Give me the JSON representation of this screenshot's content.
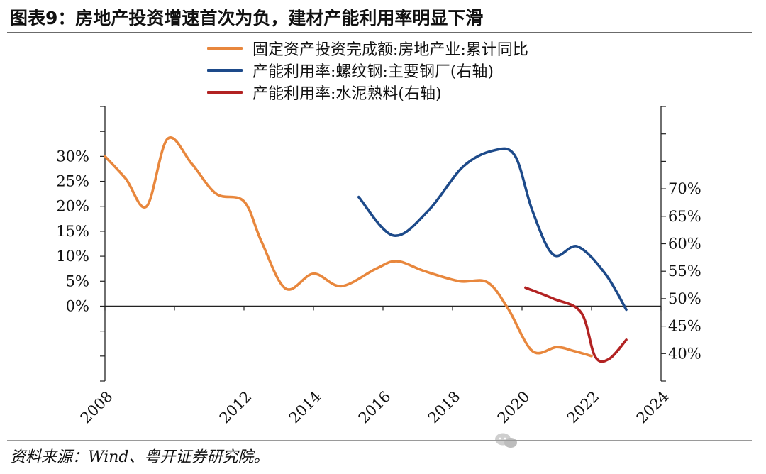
{
  "page": {
    "title": "图表9：房地产投资增速首次为负，建材产能利用率明显下滑",
    "source": "资料来源：Wind、粤开证券研究院。"
  },
  "chart_data": {
    "type": "line",
    "title": "图表9：房地产投资增速首次为负，建材产能利用率明显下滑",
    "x_ticks": [
      "2008",
      "",
      "2012",
      "2014",
      "2016",
      "2018",
      "2020",
      "2022",
      "2024"
    ],
    "x_range": [
      2008,
      2024
    ],
    "left_axis": {
      "range": [
        -15,
        40
      ],
      "ticks": [
        {
          "value": 30,
          "label": "30%"
        },
        {
          "value": 25,
          "label": "25%"
        },
        {
          "value": 20,
          "label": "20%"
        },
        {
          "value": 15,
          "label": "15%"
        },
        {
          "value": 10,
          "label": "10%"
        },
        {
          "value": 5,
          "label": "5%"
        },
        {
          "value": 0,
          "label": "0%"
        }
      ]
    },
    "right_axis": {
      "range": [
        35,
        85
      ],
      "ticks": [
        {
          "value": 70,
          "label": "70%"
        },
        {
          "value": 65,
          "label": "65%"
        },
        {
          "value": 60,
          "label": "60%"
        },
        {
          "value": 55,
          "label": "55%"
        },
        {
          "value": 50,
          "label": "50%"
        },
        {
          "value": 45,
          "label": "45%"
        },
        {
          "value": 40,
          "label": "40%"
        }
      ]
    },
    "legend_position": "top",
    "series": [
      {
        "name": "固定资产投资完成额:房地产业:累计同比",
        "axis": "left",
        "color": "#e8873d",
        "x": [
          2008,
          2008.6,
          2009.2,
          2009.8,
          2010.5,
          2011.2,
          2012.0,
          2012.5,
          2013.2,
          2014.0,
          2014.8,
          2015.8,
          2016.4,
          2017.2,
          2018.2,
          2019.0,
          2019.6,
          2020.3,
          2021.0,
          2021.5,
          2022.0,
          2022.6,
          2023.0,
          2023.6,
          2024.0
        ],
        "values": [
          30.0,
          25.5,
          20.0,
          33.5,
          28.5,
          22.5,
          21.0,
          13.0,
          3.5,
          6.5,
          4.0,
          7.5,
          9.0,
          7.0,
          5.0,
          4.8,
          -0.5,
          -9.0,
          -8.2,
          -9.0,
          -10.0,
          null,
          null,
          null,
          null
        ]
      },
      {
        "name": "产能利用率:螺纹钢:主要钢厂(右轴)",
        "axis": "right",
        "color": "#1d4a8a",
        "x": [
          2015.3,
          2016.3,
          2017.3,
          2018.3,
          2019.2,
          2019.8,
          2020.3,
          2020.9,
          2021.6,
          2022.4,
          2023.0
        ],
        "values": [
          68.5,
          61.5,
          66.0,
          74.0,
          77.0,
          76.0,
          66.0,
          58.0,
          59.5,
          54.5,
          48.0
        ]
      },
      {
        "name": "产能利用率:水泥熟料(右轴)",
        "axis": "right",
        "color": "#b22222",
        "x": [
          2020.1,
          2020.9,
          2021.7,
          2022.1,
          2022.5,
          2023.0
        ],
        "values": [
          52.0,
          50.0,
          47.5,
          39.5,
          39.0,
          42.5
        ]
      }
    ]
  }
}
